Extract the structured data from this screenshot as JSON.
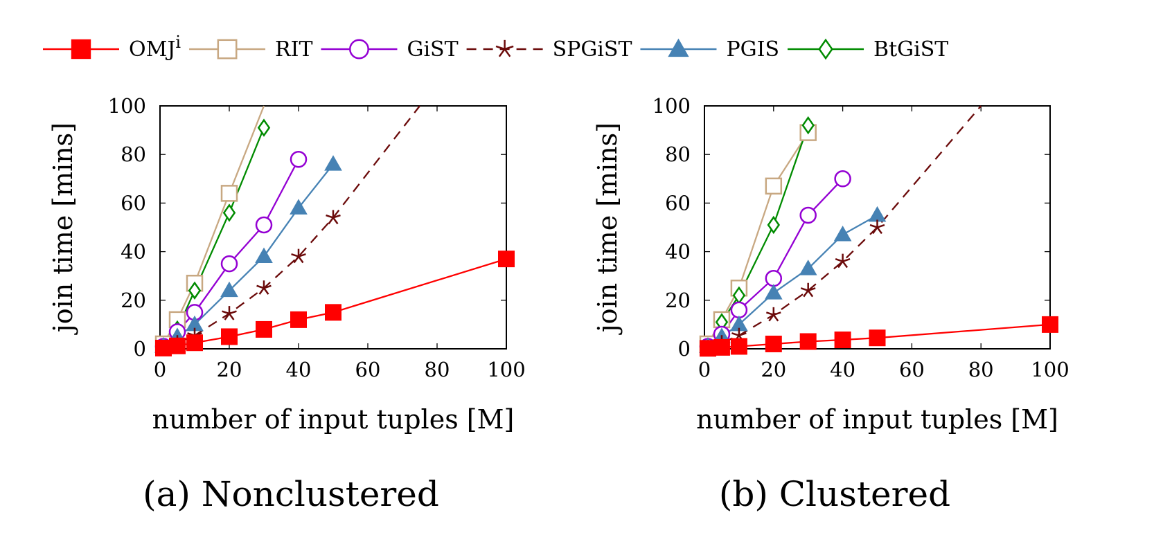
{
  "legend": [
    {
      "label": "OMJ",
      "sup": "i"
    },
    {
      "label": "RIT"
    },
    {
      "label": "GiST"
    },
    {
      "label": "SPGiST"
    },
    {
      "label": "PGIS"
    },
    {
      "label": "BtGiST"
    }
  ],
  "styles": {
    "OMJ": {
      "color": "#ff0000",
      "marker": "filled-square",
      "dash": "solid"
    },
    "RIT": {
      "color": "#c8a882",
      "marker": "open-square",
      "dash": "solid"
    },
    "GiST": {
      "color": "#9400d3",
      "marker": "open-circle",
      "dash": "solid"
    },
    "SPGiST": {
      "color": "#6b0a0a",
      "marker": "asterisk",
      "dash": "dashed"
    },
    "PGIS": {
      "color": "#4682b4",
      "marker": "filled-triangle",
      "dash": "solid"
    },
    "BtGiST": {
      "color": "#008b00",
      "marker": "open-diamond",
      "dash": "solid"
    }
  },
  "chart_data": [
    {
      "type": "line",
      "caption": "(a) Nonclustered",
      "xlabel": "number of input tuples [M]",
      "ylabel": "join time [mins]",
      "xlim": [
        0,
        100
      ],
      "ylim": [
        0,
        100
      ],
      "xticks": [
        0,
        20,
        40,
        60,
        80,
        100
      ],
      "yticks": [
        0,
        20,
        40,
        60,
        80,
        100
      ],
      "grid": "ticks only",
      "series": [
        {
          "name": "OMJ",
          "x": [
            1,
            5,
            10,
            20,
            30,
            40,
            50,
            100
          ],
          "y": [
            0.3,
            1.2,
            2.5,
            5,
            8,
            12,
            15,
            37
          ]
        },
        {
          "name": "RIT",
          "x": [
            1,
            5,
            10,
            20,
            30
          ],
          "y": [
            2,
            12,
            27,
            64,
            100
          ]
        },
        {
          "name": "GiST",
          "x": [
            1,
            5,
            10,
            20,
            30,
            40
          ],
          "y": [
            1,
            7,
            15,
            35,
            51,
            78
          ]
        },
        {
          "name": "SPGiST",
          "x": [
            1,
            5,
            10,
            20,
            30,
            40,
            50,
            75
          ],
          "y": [
            0.5,
            2.5,
            5.5,
            14.5,
            25,
            38,
            54,
            100
          ]
        },
        {
          "name": "PGIS",
          "x": [
            1,
            5,
            10,
            20,
            30,
            40,
            50
          ],
          "y": [
            1,
            5,
            10,
            24,
            38,
            58,
            76
          ]
        },
        {
          "name": "BtGiST",
          "x": [
            1,
            5,
            10,
            20,
            30
          ],
          "y": [
            1,
            8,
            24,
            56,
            91
          ]
        }
      ]
    },
    {
      "type": "line",
      "caption": "(b) Clustered",
      "xlabel": "number of input tuples [M]",
      "ylabel": "join time [mins]",
      "xlim": [
        0,
        100
      ],
      "ylim": [
        0,
        100
      ],
      "xticks": [
        0,
        20,
        40,
        60,
        80,
        100
      ],
      "yticks": [
        0,
        20,
        40,
        60,
        80,
        100
      ],
      "grid": "ticks only",
      "series": [
        {
          "name": "OMJ",
          "x": [
            1,
            5,
            10,
            20,
            30,
            40,
            50,
            100
          ],
          "y": [
            0.2,
            0.6,
            1,
            2,
            3,
            3.7,
            4.5,
            10
          ]
        },
        {
          "name": "RIT",
          "x": [
            1,
            5,
            10,
            20,
            30
          ],
          "y": [
            2,
            12,
            25,
            67,
            89
          ]
        },
        {
          "name": "GiST",
          "x": [
            1,
            5,
            10,
            20,
            30,
            40
          ],
          "y": [
            1,
            6,
            16,
            29,
            55,
            70
          ]
        },
        {
          "name": "SPGiST",
          "x": [
            1,
            5,
            10,
            20,
            30,
            40,
            50,
            80
          ],
          "y": [
            0.5,
            2.5,
            5.5,
            14,
            24,
            36,
            50,
            100
          ]
        },
        {
          "name": "PGIS",
          "x": [
            1,
            5,
            10,
            20,
            30,
            40,
            50
          ],
          "y": [
            1,
            5,
            10,
            23,
            33,
            47,
            55
          ]
        },
        {
          "name": "BtGiST",
          "x": [
            1,
            5,
            10,
            20,
            30
          ],
          "y": [
            1,
            11,
            22,
            51,
            92
          ]
        }
      ]
    }
  ]
}
